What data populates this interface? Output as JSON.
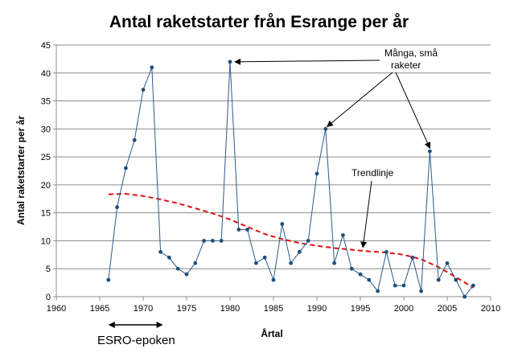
{
  "chart_data": {
    "type": "line",
    "title": "Antal raketstarter från Esrange per år",
    "xlabel": "Årtal",
    "ylabel": "Antal raketstarter per år",
    "xlim": [
      1960,
      2010
    ],
    "ylim": [
      0,
      45
    ],
    "x_ticks": [
      1960,
      1965,
      1970,
      1975,
      1980,
      1985,
      1990,
      1995,
      2000,
      2005,
      2010
    ],
    "y_ticks": [
      0,
      5,
      10,
      15,
      20,
      25,
      30,
      35,
      40,
      45
    ],
    "grid": "horizontal",
    "series": [
      {
        "color": "#2c5a8a",
        "points": [
          [
            1966,
            3
          ],
          [
            1967,
            16
          ],
          [
            1968,
            23
          ],
          [
            1969,
            28
          ],
          [
            1970,
            37
          ],
          [
            1971,
            41
          ],
          [
            1972,
            8
          ],
          [
            1973,
            7
          ],
          [
            1974,
            5
          ],
          [
            1975,
            4
          ],
          [
            1976,
            6
          ],
          [
            1977,
            10
          ],
          [
            1978,
            10
          ],
          [
            1979,
            10
          ],
          [
            1980,
            42
          ],
          [
            1981,
            12
          ],
          [
            1982,
            12
          ],
          [
            1983,
            6
          ],
          [
            1984,
            7
          ],
          [
            1985,
            3
          ],
          [
            1986,
            13
          ],
          [
            1987,
            6
          ],
          [
            1988,
            8
          ],
          [
            1989,
            10
          ],
          [
            1990,
            22
          ],
          [
            1991,
            30
          ],
          [
            1992,
            6
          ],
          [
            1993,
            11
          ],
          [
            1994,
            5
          ],
          [
            1995,
            4
          ],
          [
            1996,
            3
          ],
          [
            1997,
            1
          ],
          [
            1998,
            8
          ],
          [
            1999,
            2
          ],
          [
            2000,
            2
          ],
          [
            2001,
            7
          ],
          [
            2002,
            1
          ],
          [
            2003,
            26
          ],
          [
            2004,
            3
          ],
          [
            2005,
            6
          ],
          [
            2006,
            3
          ],
          [
            2007,
            0
          ],
          [
            2008,
            2
          ]
        ]
      }
    ],
    "trendline": {
      "color": "#e01010",
      "style": "dashed",
      "points": [
        [
          1966,
          18.3
        ],
        [
          1968,
          18.4
        ],
        [
          1970,
          18.0
        ],
        [
          1972,
          17.4
        ],
        [
          1974,
          16.7
        ],
        [
          1976,
          15.8
        ],
        [
          1978,
          14.9
        ],
        [
          1980,
          13.8
        ],
        [
          1982,
          12.5
        ],
        [
          1984,
          11.2
        ],
        [
          1986,
          10.3
        ],
        [
          1988,
          9.6
        ],
        [
          1990,
          9.1
        ],
        [
          1992,
          8.7
        ],
        [
          1994,
          8.4
        ],
        [
          1996,
          8.1
        ],
        [
          1998,
          7.9
        ],
        [
          2000,
          7.5
        ],
        [
          2002,
          6.7
        ],
        [
          2004,
          5.3
        ],
        [
          2006,
          3.5
        ],
        [
          2008,
          1.6
        ]
      ]
    },
    "annotations": {
      "many_small_line1": "Många, små",
      "many_small_line2": "raketer",
      "trendline_label": "Trendlinje",
      "esro_label": "ESRO-epoken",
      "esro_range": [
        1966,
        1972
      ]
    }
  }
}
